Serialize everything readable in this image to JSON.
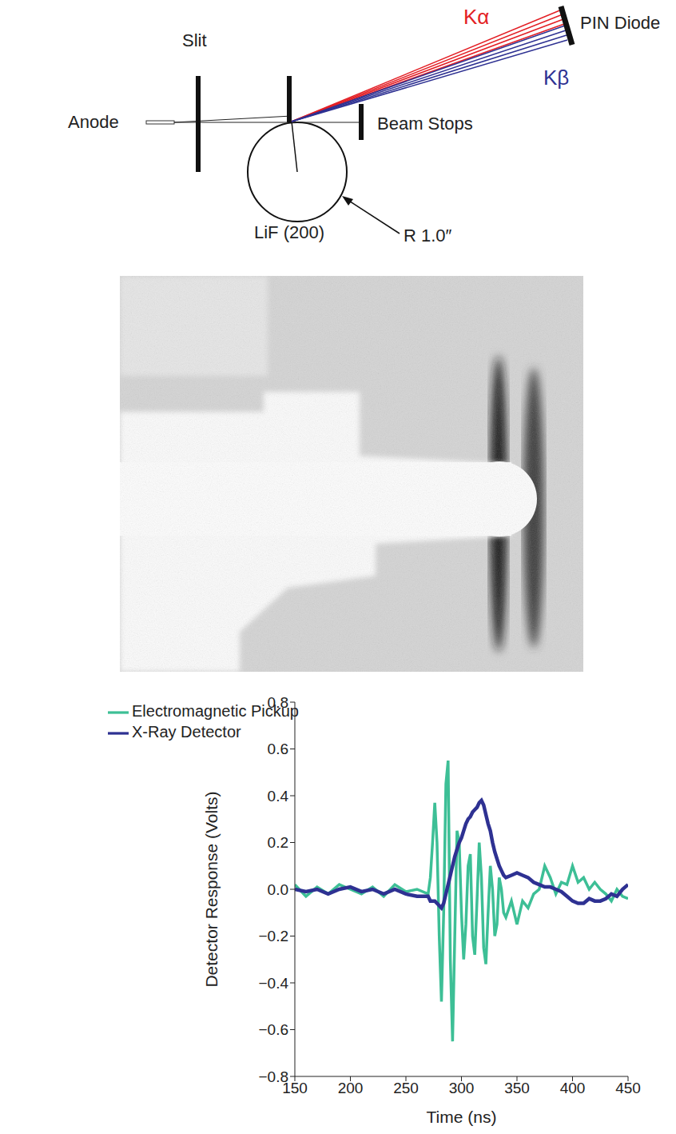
{
  "diagram": {
    "anode": "Anode",
    "slit": "Slit",
    "beam_stops": "Beam Stops",
    "crystal": "LiF (200)",
    "radius": "R 1.0″",
    "detector": "PIN Diode",
    "k_alpha": "Kα",
    "k_beta": "Kβ"
  },
  "chart_data": {
    "type": "line",
    "x_label": "Time (ns)",
    "y_label": "Detector Response (Volts)",
    "xlim": [
      150,
      450
    ],
    "xticks": [
      150,
      200,
      250,
      300,
      350,
      400,
      450
    ],
    "ylim": [
      -0.8,
      0.8
    ],
    "yticks": [
      {
        "value": -0.8,
        "label": "−0.8"
      },
      {
        "value": -0.6,
        "label": "−0.6"
      },
      {
        "value": -0.4,
        "label": "−0.4"
      },
      {
        "value": -0.2,
        "label": "−0.2"
      },
      {
        "value": 0,
        "label": "0.0"
      },
      0.2,
      0.4,
      0.6,
      0.8
    ],
    "grid": false,
    "legend": "top-left",
    "x": [
      150,
      160,
      170,
      180,
      190,
      200,
      210,
      220,
      230,
      240,
      250,
      260,
      270,
      272,
      274,
      276,
      278,
      280,
      282,
      284,
      286,
      288,
      290,
      292,
      294,
      296,
      298,
      300,
      302,
      304,
      306,
      308,
      310,
      312,
      314,
      316,
      318,
      320,
      322,
      324,
      326,
      328,
      330,
      332,
      334,
      336,
      338,
      340,
      345,
      350,
      355,
      360,
      365,
      370,
      375,
      380,
      385,
      390,
      395,
      400,
      405,
      410,
      415,
      420,
      425,
      430,
      435,
      440,
      445,
      450
    ],
    "series": [
      {
        "name": "Electromagnetic Pickup",
        "color": "#3dbf96",
        "values": [
          0.02,
          -0.03,
          0.01,
          -0.02,
          0.02,
          0.0,
          -0.02,
          0.01,
          -0.03,
          0.02,
          -0.01,
          0.0,
          -0.02,
          0.05,
          0.2,
          0.37,
          0.2,
          -0.2,
          -0.48,
          -0.1,
          0.45,
          0.55,
          -0.3,
          -0.65,
          -0.2,
          0.25,
          0.2,
          -0.1,
          -0.3,
          -0.15,
          0.1,
          0.15,
          -0.2,
          -0.28,
          -0.05,
          0.2,
          0.05,
          -0.25,
          -0.32,
          -0.1,
          0.1,
          0.0,
          -0.2,
          -0.15,
          0.05,
          0.0,
          -0.1,
          -0.12,
          -0.05,
          -0.15,
          -0.05,
          -0.08,
          -0.02,
          0.0,
          0.1,
          0.05,
          -0.02,
          0.03,
          0.02,
          0.1,
          0.03,
          0.05,
          0.0,
          0.03,
          0.0,
          -0.02,
          -0.05,
          0.0,
          -0.03,
          -0.04
        ]
      },
      {
        "name": "X-Ray Detector",
        "color": "#2e3192",
        "values": [
          0.0,
          -0.01,
          0.0,
          -0.02,
          0.0,
          0.01,
          -0.01,
          0.0,
          -0.02,
          0.0,
          -0.02,
          -0.03,
          -0.03,
          -0.05,
          -0.05,
          -0.05,
          -0.06,
          -0.07,
          -0.08,
          -0.06,
          -0.02,
          0.02,
          0.06,
          0.1,
          0.14,
          0.17,
          0.2,
          0.22,
          0.25,
          0.28,
          0.3,
          0.31,
          0.33,
          0.34,
          0.35,
          0.37,
          0.38,
          0.36,
          0.32,
          0.28,
          0.25,
          0.2,
          0.16,
          0.13,
          0.1,
          0.08,
          0.06,
          0.05,
          0.06,
          0.07,
          0.06,
          0.05,
          0.03,
          0.02,
          0.01,
          0.01,
          0.0,
          -0.01,
          -0.03,
          -0.05,
          -0.06,
          -0.06,
          -0.04,
          -0.05,
          -0.05,
          -0.04,
          -0.02,
          -0.03,
          0.0,
          0.02
        ]
      }
    ]
  }
}
